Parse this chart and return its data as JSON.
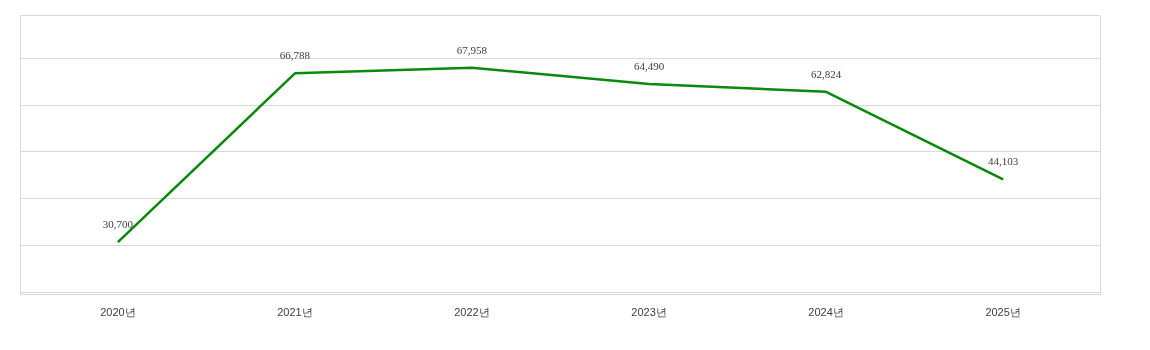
{
  "chart_data": {
    "type": "line",
    "categories": [
      "2020년",
      "2021년",
      "2022년",
      "2023년",
      "2024년",
      "2025년"
    ],
    "series": [
      {
        "color": "#0a8a0a",
        "values": [
          30700,
          66788,
          67958,
          64490,
          62824,
          44103
        ],
        "value_labels": [
          "30,700",
          "66,788",
          "67,958",
          "64,490",
          "62,824",
          "44,103"
        ]
      }
    ],
    "tick_labels": "x",
    "grid": "y",
    "marker": "none",
    "line_style": "solid"
  }
}
